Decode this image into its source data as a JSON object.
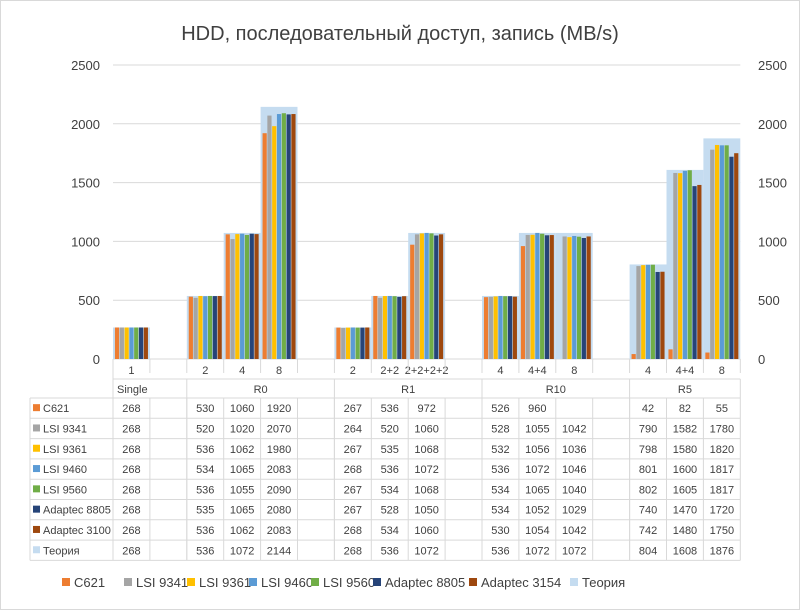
{
  "chart_data": {
    "type": "bar",
    "title": "HDD, последовательный доступ, запись (MB/s)",
    "ylim": [
      0,
      2500
    ],
    "yticks": [
      0,
      500,
      1000,
      1500,
      2000,
      2500
    ],
    "grid": true,
    "legend_position": "bottom",
    "categories": [
      "1",
      "",
      "2",
      "4",
      "8",
      "",
      "2",
      "2+2",
      "2+2+2+2",
      "",
      "4",
      "4+4",
      "8",
      "",
      "4",
      "4+4",
      "8"
    ],
    "groups": [
      {
        "label": "Single",
        "span": 2
      },
      {
        "label": "R0",
        "span": 4
      },
      {
        "label": "R1",
        "span": 4
      },
      {
        "label": "R10",
        "span": 4
      },
      {
        "label": "R5",
        "span": 3
      }
    ],
    "series": [
      {
        "name": "C621",
        "legend": "C621",
        "color": "#ED7D31",
        "values": [
          268,
          null,
          530,
          1060,
          1920,
          null,
          267,
          536,
          972,
          null,
          526,
          960,
          null,
          null,
          42,
          82,
          55
        ]
      },
      {
        "name": "LSI 9341",
        "legend": "LSI 9341",
        "color": "#A5A5A5",
        "values": [
          268,
          null,
          520,
          1020,
          2070,
          null,
          264,
          520,
          1060,
          null,
          528,
          1055,
          1042,
          null,
          790,
          1582,
          1780
        ]
      },
      {
        "name": "LSI 9361",
        "legend": "LSI 9361",
        "color": "#FFC000",
        "values": [
          268,
          null,
          536,
          1062,
          1980,
          null,
          267,
          535,
          1068,
          null,
          532,
          1056,
          1036,
          null,
          798,
          1580,
          1820
        ]
      },
      {
        "name": "LSI 9460",
        "legend": "LSI 9460",
        "color": "#5B9BD5",
        "values": [
          268,
          null,
          534,
          1065,
          2083,
          null,
          268,
          536,
          1072,
          null,
          536,
          1072,
          1046,
          null,
          801,
          1600,
          1817
        ]
      },
      {
        "name": "LSI 9560",
        "legend": "LSI 9560",
        "color": "#70AD47",
        "values": [
          268,
          null,
          536,
          1055,
          2090,
          null,
          267,
          534,
          1068,
          null,
          534,
          1065,
          1040,
          null,
          802,
          1605,
          1817
        ]
      },
      {
        "name": "Adaptec 8805",
        "legend": "Adaptec 8805",
        "color": "#264478",
        "values": [
          268,
          null,
          535,
          1065,
          2080,
          null,
          267,
          528,
          1050,
          null,
          534,
          1052,
          1029,
          null,
          740,
          1470,
          1720
        ]
      },
      {
        "name": "Adaptec 3100",
        "legend": "Adaptec 3154",
        "color": "#9E480E",
        "values": [
          268,
          null,
          536,
          1062,
          2083,
          null,
          268,
          534,
          1060,
          null,
          530,
          1054,
          1042,
          null,
          742,
          1480,
          1750
        ]
      },
      {
        "name": "Теория",
        "legend": "Теория",
        "color": "#C5DCF0",
        "values": [
          268,
          null,
          536,
          1072,
          2144,
          null,
          268,
          536,
          1072,
          null,
          536,
          1072,
          1072,
          null,
          804,
          1608,
          1876
        ],
        "background": true
      }
    ]
  }
}
